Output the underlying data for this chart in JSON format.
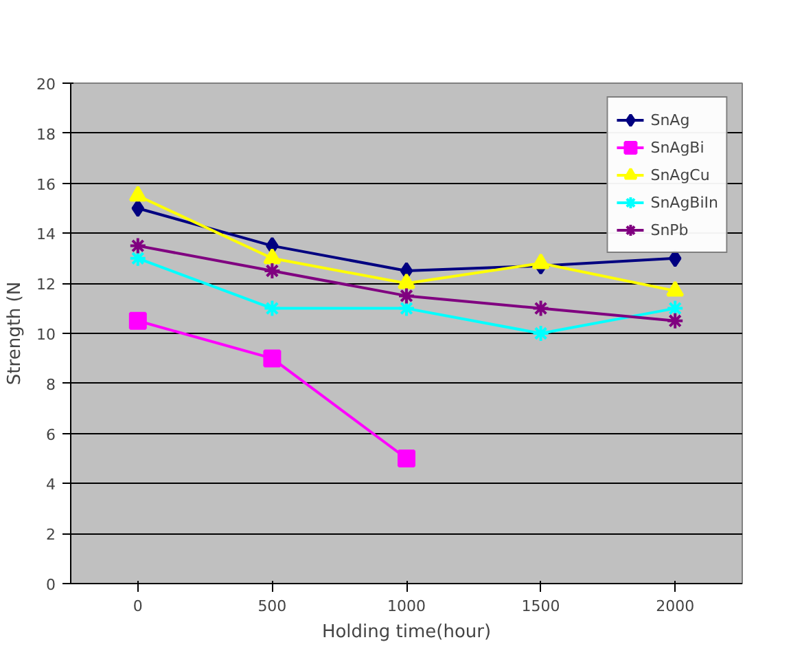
{
  "chart_data": {
    "type": "line",
    "xlabel": "Holding time(hour)",
    "ylabel": "Strength (N",
    "categories": [
      "0",
      "500",
      "1000",
      "1500",
      "2000"
    ],
    "ylim": [
      0,
      20
    ],
    "yticks": [
      0,
      2,
      4,
      6,
      8,
      10,
      12,
      14,
      16,
      18,
      20
    ],
    "grid": "y",
    "legend": "top right",
    "series": [
      {
        "name": "SnAg",
        "color": "#000080",
        "marker": "diamond",
        "values": [
          15,
          13.5,
          12.5,
          12.7,
          13
        ]
      },
      {
        "name": "SnAgBi",
        "color": "#ff00ff",
        "marker": "square",
        "values": [
          10.5,
          9,
          5,
          null,
          null
        ]
      },
      {
        "name": "SnAgCu",
        "color": "#ffff00",
        "marker": "triangle",
        "values": [
          15.5,
          13,
          12,
          12.8,
          11.7
        ]
      },
      {
        "name": "SnAgBiIn",
        "color": "#00ffff",
        "marker": "cross",
        "values": [
          13,
          11,
          11,
          10,
          11
        ]
      },
      {
        "name": "SnPb",
        "color": "#800080",
        "marker": "cross",
        "values": [
          13.5,
          12.5,
          11.5,
          11,
          10.5
        ]
      }
    ]
  }
}
